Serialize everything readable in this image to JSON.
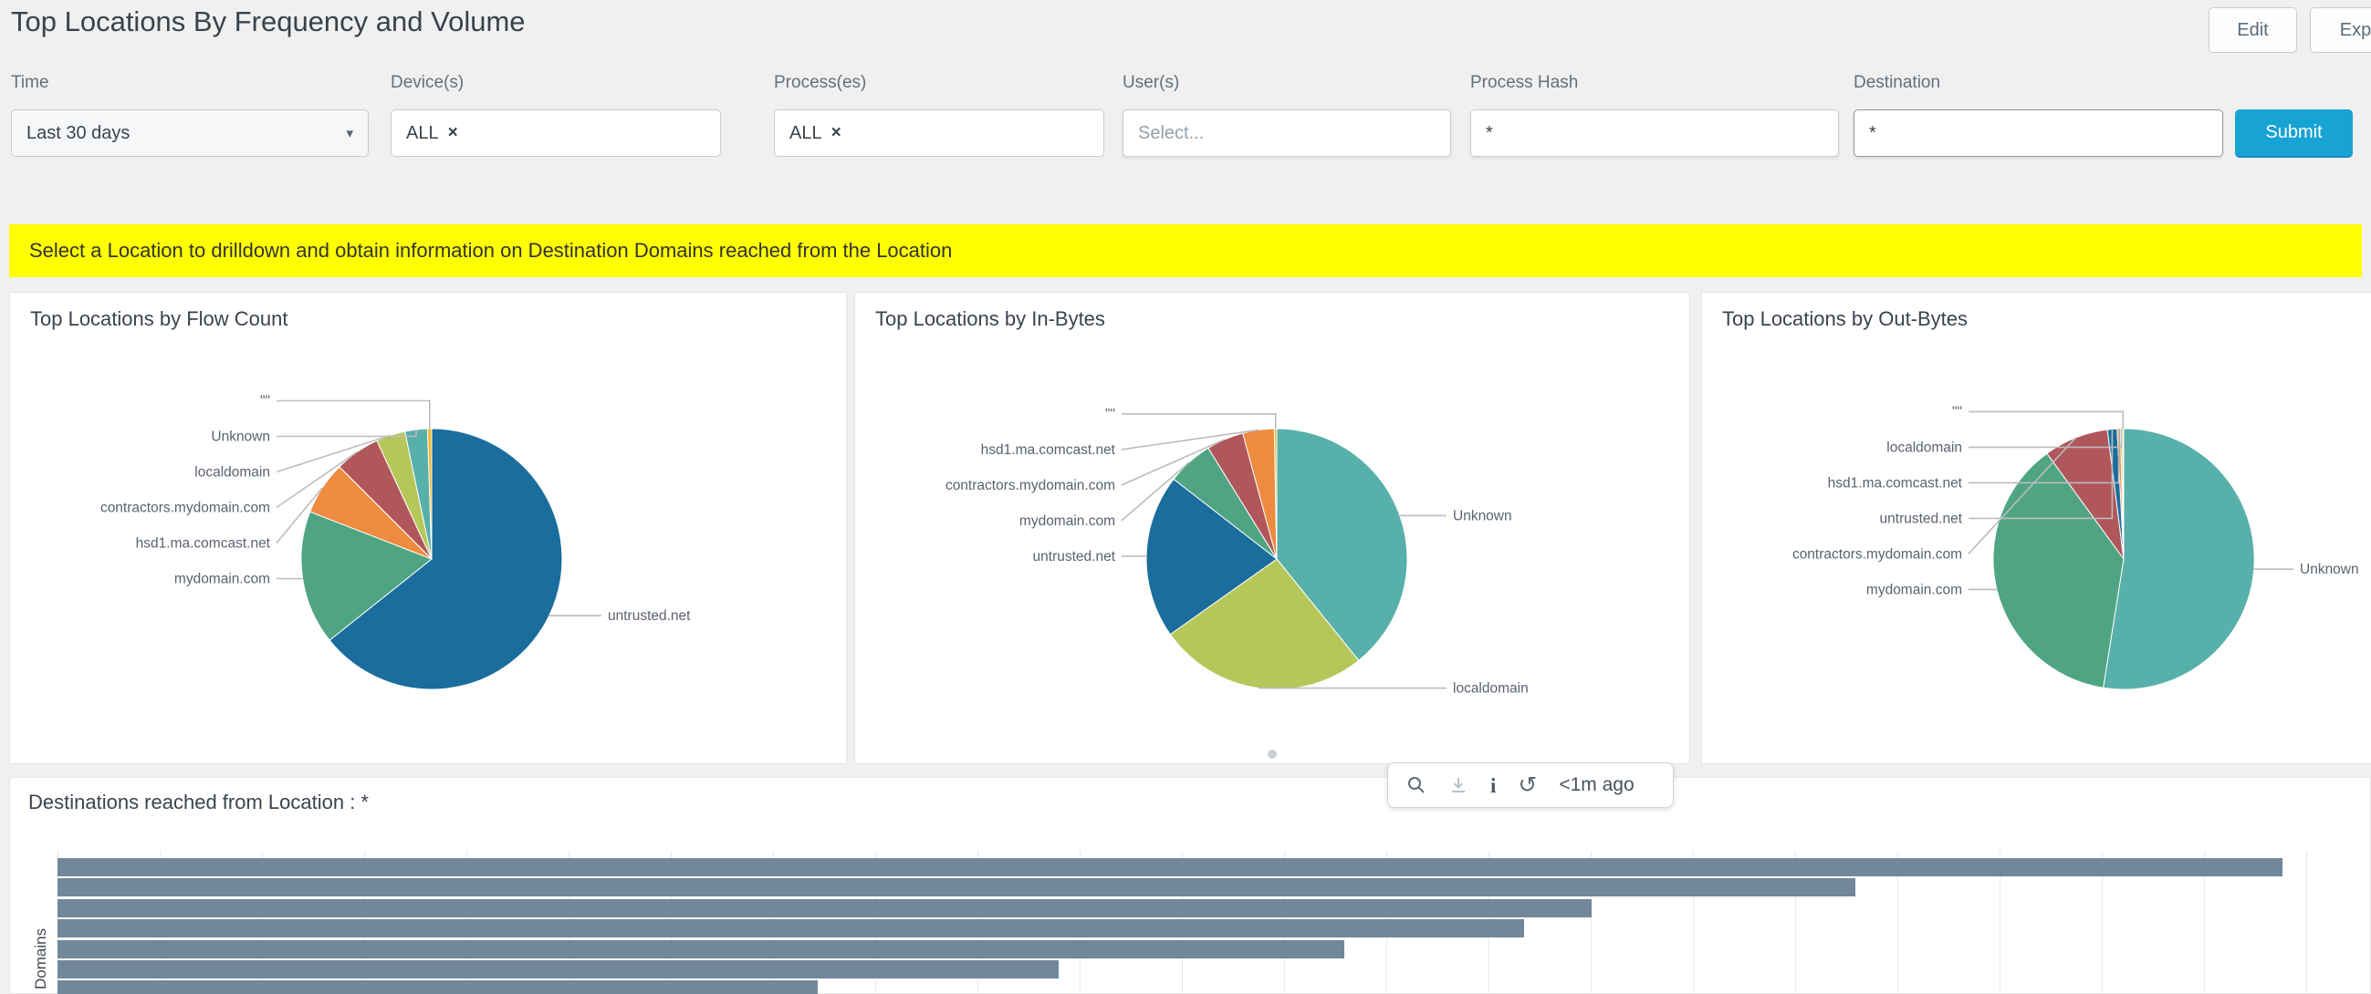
{
  "header": {
    "title": "Top Locations By Frequency and Volume",
    "edit_label": "Edit",
    "export_label": "Exp"
  },
  "filters": {
    "time": {
      "label": "Time",
      "value": "Last 30 days"
    },
    "devices": {
      "label": "Device(s)",
      "chip": "ALL"
    },
    "processes": {
      "label": "Process(es)",
      "chip": "ALL"
    },
    "users": {
      "label": "User(s)",
      "placeholder": "Select..."
    },
    "process_hash": {
      "label": "Process Hash",
      "value": "*"
    },
    "destination": {
      "label": "Destination",
      "value": "*"
    },
    "submit_label": "Submit"
  },
  "banner": {
    "text": "Select a Location to drilldown and obtain information on Destination Domains reached from the Location",
    "bg": "#ffff00",
    "text_color": "#333333"
  },
  "icons": {
    "remove": "×",
    "caret": "▾",
    "info": "i",
    "refresh": "↺"
  },
  "toolbar": {
    "last_updated": "<1m ago"
  },
  "colors": {
    "submit_bg": "#17a3d4",
    "bar": "#72879a",
    "leader_line": "#bcbcbc",
    "pie_label_text": "#5a6370",
    "category_colors": {
      "untrusted.net": "#1a6d9c",
      "mydomain.com": "#4fa484",
      "hsd1.ma.comcast.net": "#ed8c40",
      "contractors.mydomain.com": "#b0575c",
      "localdomain": "#b6c75a",
      "Unknown": "#58b0aa",
      "\"\"": "#f2b827"
    }
  },
  "chart_data": [
    {
      "type": "pie",
      "title": "Top Locations by Flow Count",
      "labels": [
        "untrusted.net",
        "mydomain.com",
        "hsd1.ma.comcast.net",
        "contractors.mydomain.com",
        "localdomain",
        "Unknown",
        "\"\""
      ],
      "values_pct": [
        64.3,
        16.6,
        6.6,
        5.6,
        3.6,
        2.8,
        0.5
      ],
      "note": "percentages estimated from arc angles; no numeric labels shown in chart"
    },
    {
      "type": "pie",
      "title": "Top Locations by In-Bytes",
      "labels": [
        "Unknown",
        "localdomain",
        "untrusted.net",
        "mydomain.com",
        "contractors.mydomain.com",
        "hsd1.ma.comcast.net",
        "\"\""
      ],
      "values_pct": [
        39.2,
        26.0,
        20.3,
        5.7,
        4.6,
        3.9,
        0.3
      ],
      "note": "percentages estimated from arc angles; no numeric labels shown in chart"
    },
    {
      "type": "pie",
      "title": "Top Locations by Out-Bytes",
      "labels": [
        "Unknown",
        "mydomain.com",
        "contractors.mydomain.com",
        "untrusted.net",
        "hsd1.ma.comcast.net",
        "localdomain",
        "\"\""
      ],
      "values_pct": [
        52.5,
        37.5,
        8.0,
        1.2,
        0.4,
        0.25,
        0.15
      ],
      "note": "percentages estimated from arc angles; rightmost label clipped at screen edge"
    },
    {
      "type": "bar",
      "orientation": "horizontal",
      "title": "Destinations reached from Location : *",
      "ylabel": "Domains",
      "values_pct_of_xmax": [
        98.9,
        79.9,
        68.2,
        65.2,
        57.2,
        44.5,
        33.8
      ],
      "note": "bar category labels and x-axis tick labels are cut off below/left of the visible screenshot"
    }
  ]
}
